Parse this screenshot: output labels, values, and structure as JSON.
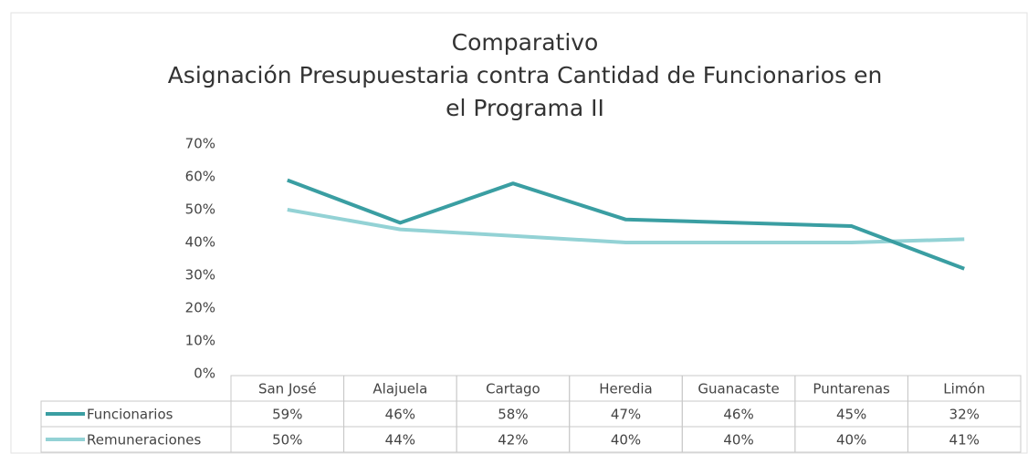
{
  "chart_data": {
    "type": "line",
    "title": [
      "Comparativo",
      "Asignación Presupuestaria contra Cantidad de Funcionarios en",
      "el Programa  II"
    ],
    "categories": [
      "San José",
      "Alajuela",
      "Cartago",
      "Heredia",
      "Guanacaste",
      "Puntarenas",
      "Limón"
    ],
    "series": [
      {
        "name": "Funcionarios",
        "color": "#3a9ea2",
        "values": [
          59,
          46,
          58,
          47,
          46,
          45,
          32
        ],
        "value_labels": [
          "59%",
          "46%",
          "58%",
          "47%",
          "46%",
          "45%",
          "32%"
        ]
      },
      {
        "name": "Remuneraciones",
        "color": "#93d2d5",
        "values": [
          50,
          44,
          42,
          40,
          40,
          40,
          41
        ],
        "value_labels": [
          "50%",
          "44%",
          "42%",
          "40%",
          "40%",
          "40%",
          "41%"
        ]
      }
    ],
    "ylim": [
      0,
      70
    ],
    "yticks": [
      {
        "value": 0,
        "label": "0%"
      },
      {
        "value": 10,
        "label": "10%"
      },
      {
        "value": 20,
        "label": "20%"
      },
      {
        "value": 30,
        "label": "30%"
      },
      {
        "value": 40,
        "label": "40%"
      },
      {
        "value": 50,
        "label": "50%"
      },
      {
        "value": 60,
        "label": "60%"
      },
      {
        "value": 70,
        "label": "70%"
      }
    ],
    "grid": false
  }
}
